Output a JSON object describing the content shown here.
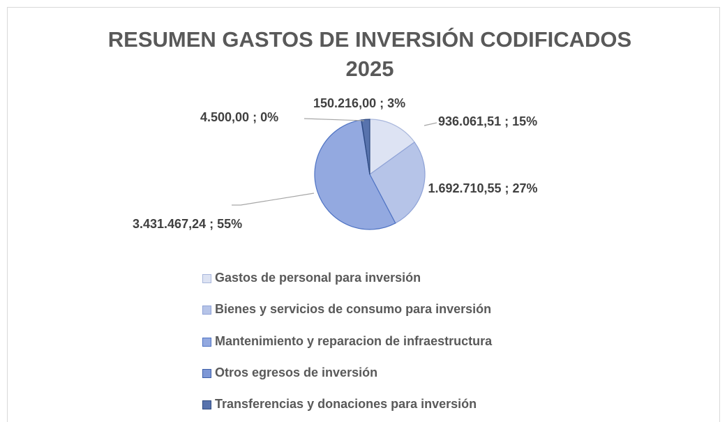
{
  "chart_data": {
    "type": "pie",
    "title": "RESUMEN  GASTOS DE INVERSIÓN CODIFICADOS 2025",
    "categories": [
      "Gastos de personal para inversión",
      "Bienes y servicios de consumo para inversión",
      "Mantenimiento y reparacion de infraestructura",
      "Otros egresos de inversión",
      "Transferencias y donaciones para inversión"
    ],
    "values": [
      936061.51,
      1692710.55,
      3431467.24,
      4500,
      150216
    ],
    "value_labels": [
      "936.061,51 ; 15%",
      "1.692.710,55 ; 27%",
      "3.431.467,24 ; 55%",
      "4.500,00 ; 0%",
      "150.216,00 ; 3%"
    ],
    "colors": [
      "#dde3f3",
      "#b6c4e8",
      "#93a9e0",
      "#7d97d6",
      "#5873ad"
    ],
    "legend": "bottom"
  }
}
